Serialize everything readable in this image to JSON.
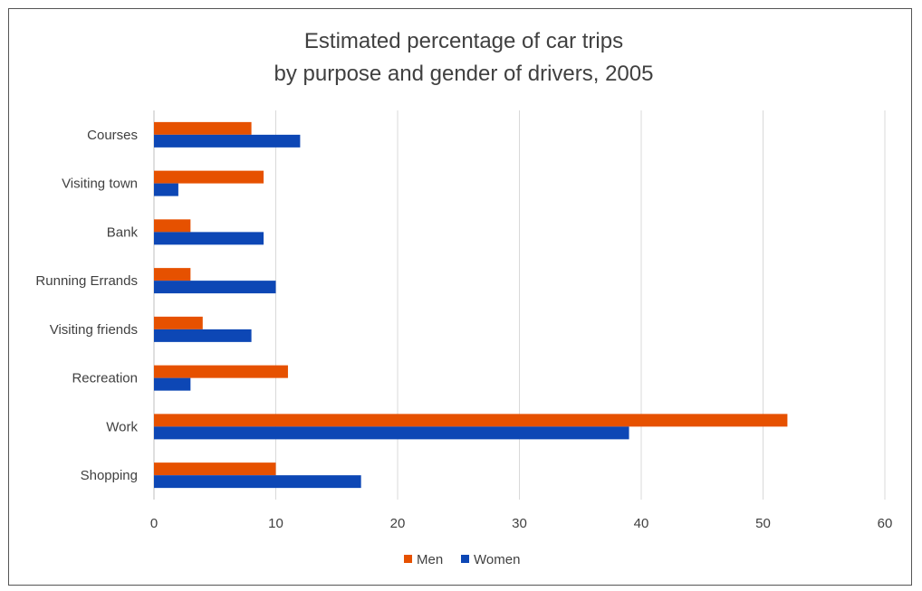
{
  "chart_data": {
    "type": "bar",
    "orientation": "horizontal",
    "title": [
      "Estimated percentage of car trips",
      "by purpose and gender of drivers, 2005"
    ],
    "categories": [
      "Courses",
      "Visiting town",
      "Bank",
      "Running Errands",
      "Visiting friends",
      "Recreation",
      "Work",
      "Shopping"
    ],
    "series": [
      {
        "name": "Men",
        "color": "#E65100",
        "values": [
          8,
          9,
          3,
          3,
          4,
          11,
          52,
          10
        ]
      },
      {
        "name": "Women",
        "color": "#0D47B5",
        "values": [
          12,
          2,
          9,
          10,
          8,
          3,
          39,
          17
        ]
      }
    ],
    "xlim": [
      0,
      60
    ],
    "xticks": [
      0,
      10,
      20,
      30,
      40,
      50,
      60
    ],
    "grid": true,
    "legend": "bottom"
  }
}
